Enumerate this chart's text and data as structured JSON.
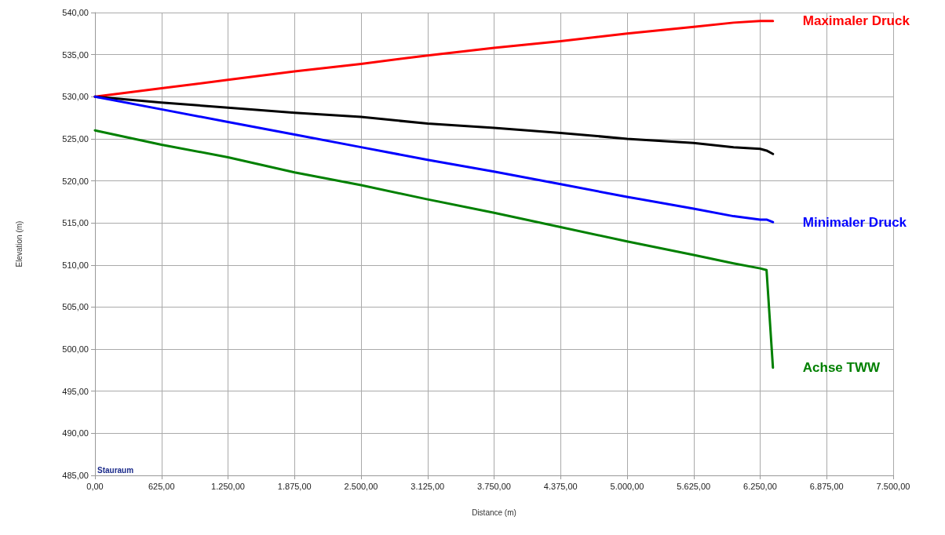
{
  "chart_data": {
    "type": "line",
    "xlabel": "Distance (m)",
    "ylabel": "Elevation (m)",
    "annotations": [
      "Stauraum"
    ],
    "x": [
      0,
      625,
      1250,
      1875,
      2500,
      3125,
      3750,
      4375,
      5000,
      5625,
      6000,
      6250,
      6310,
      6370
    ],
    "series": [
      {
        "name": "Maximaler Druck",
        "color": "#ff0000",
        "values": [
          530,
          531.0,
          532.0,
          533.0,
          533.9,
          534.9,
          535.8,
          536.6,
          537.5,
          538.3,
          538.8,
          539.0,
          539.0,
          539.0
        ]
      },
      {
        "color": "#000000",
        "values": [
          530,
          529.3,
          528.7,
          528.1,
          527.6,
          526.8,
          526.3,
          525.7,
          525.0,
          524.5,
          524.0,
          523.8,
          523.6,
          523.2
        ]
      },
      {
        "name": "Minimaler Druck",
        "color": "#0000ff",
        "values": [
          530,
          528.5,
          527.0,
          525.5,
          524.0,
          522.5,
          521.1,
          519.6,
          518.1,
          516.7,
          515.8,
          515.4,
          515.4,
          515.1
        ]
      },
      {
        "name": "Achse TWW",
        "color": "#008000",
        "values": [
          526,
          524.3,
          522.8,
          521.0,
          519.5,
          517.8,
          516.2,
          514.5,
          512.8,
          511.2,
          510.2,
          509.6,
          509.4,
          497.8
        ]
      }
    ],
    "xlim": [
      0,
      7500
    ],
    "xticks": [
      {
        "value": 0,
        "label": "0,00"
      },
      {
        "value": 625,
        "label": "625,00"
      },
      {
        "value": 1250,
        "label": "1.250,00"
      },
      {
        "value": 1875,
        "label": "1.875,00"
      },
      {
        "value": 2500,
        "label": "2.500,00"
      },
      {
        "value": 3125,
        "label": "3.125,00"
      },
      {
        "value": 3750,
        "label": "3.750,00"
      },
      {
        "value": 4375,
        "label": "4.375,00"
      },
      {
        "value": 5000,
        "label": "5.000,00"
      },
      {
        "value": 5625,
        "label": "5.625,00"
      },
      {
        "value": 6250,
        "label": "6.250,00"
      },
      {
        "value": 6875,
        "label": "6.875,00"
      },
      {
        "value": 7500,
        "label": "7.500,00"
      }
    ],
    "ylim": [
      485,
      540
    ],
    "yticks": [
      {
        "value": 485,
        "label": "485,00"
      },
      {
        "value": 490,
        "label": "490,00"
      },
      {
        "value": 495,
        "label": "495,00"
      },
      {
        "value": 500,
        "label": "500,00"
      },
      {
        "value": 505,
        "label": "505,00"
      },
      {
        "value": 510,
        "label": "510,00"
      },
      {
        "value": 515,
        "label": "515,00"
      },
      {
        "value": 520,
        "label": "520,00"
      },
      {
        "value": 525,
        "label": "525,00"
      },
      {
        "value": 530,
        "label": "530,00"
      },
      {
        "value": 535,
        "label": "535,00"
      },
      {
        "value": 540,
        "label": "540,00"
      }
    ],
    "grid": true,
    "legend": false,
    "marker": "none",
    "line_style": "solid"
  }
}
